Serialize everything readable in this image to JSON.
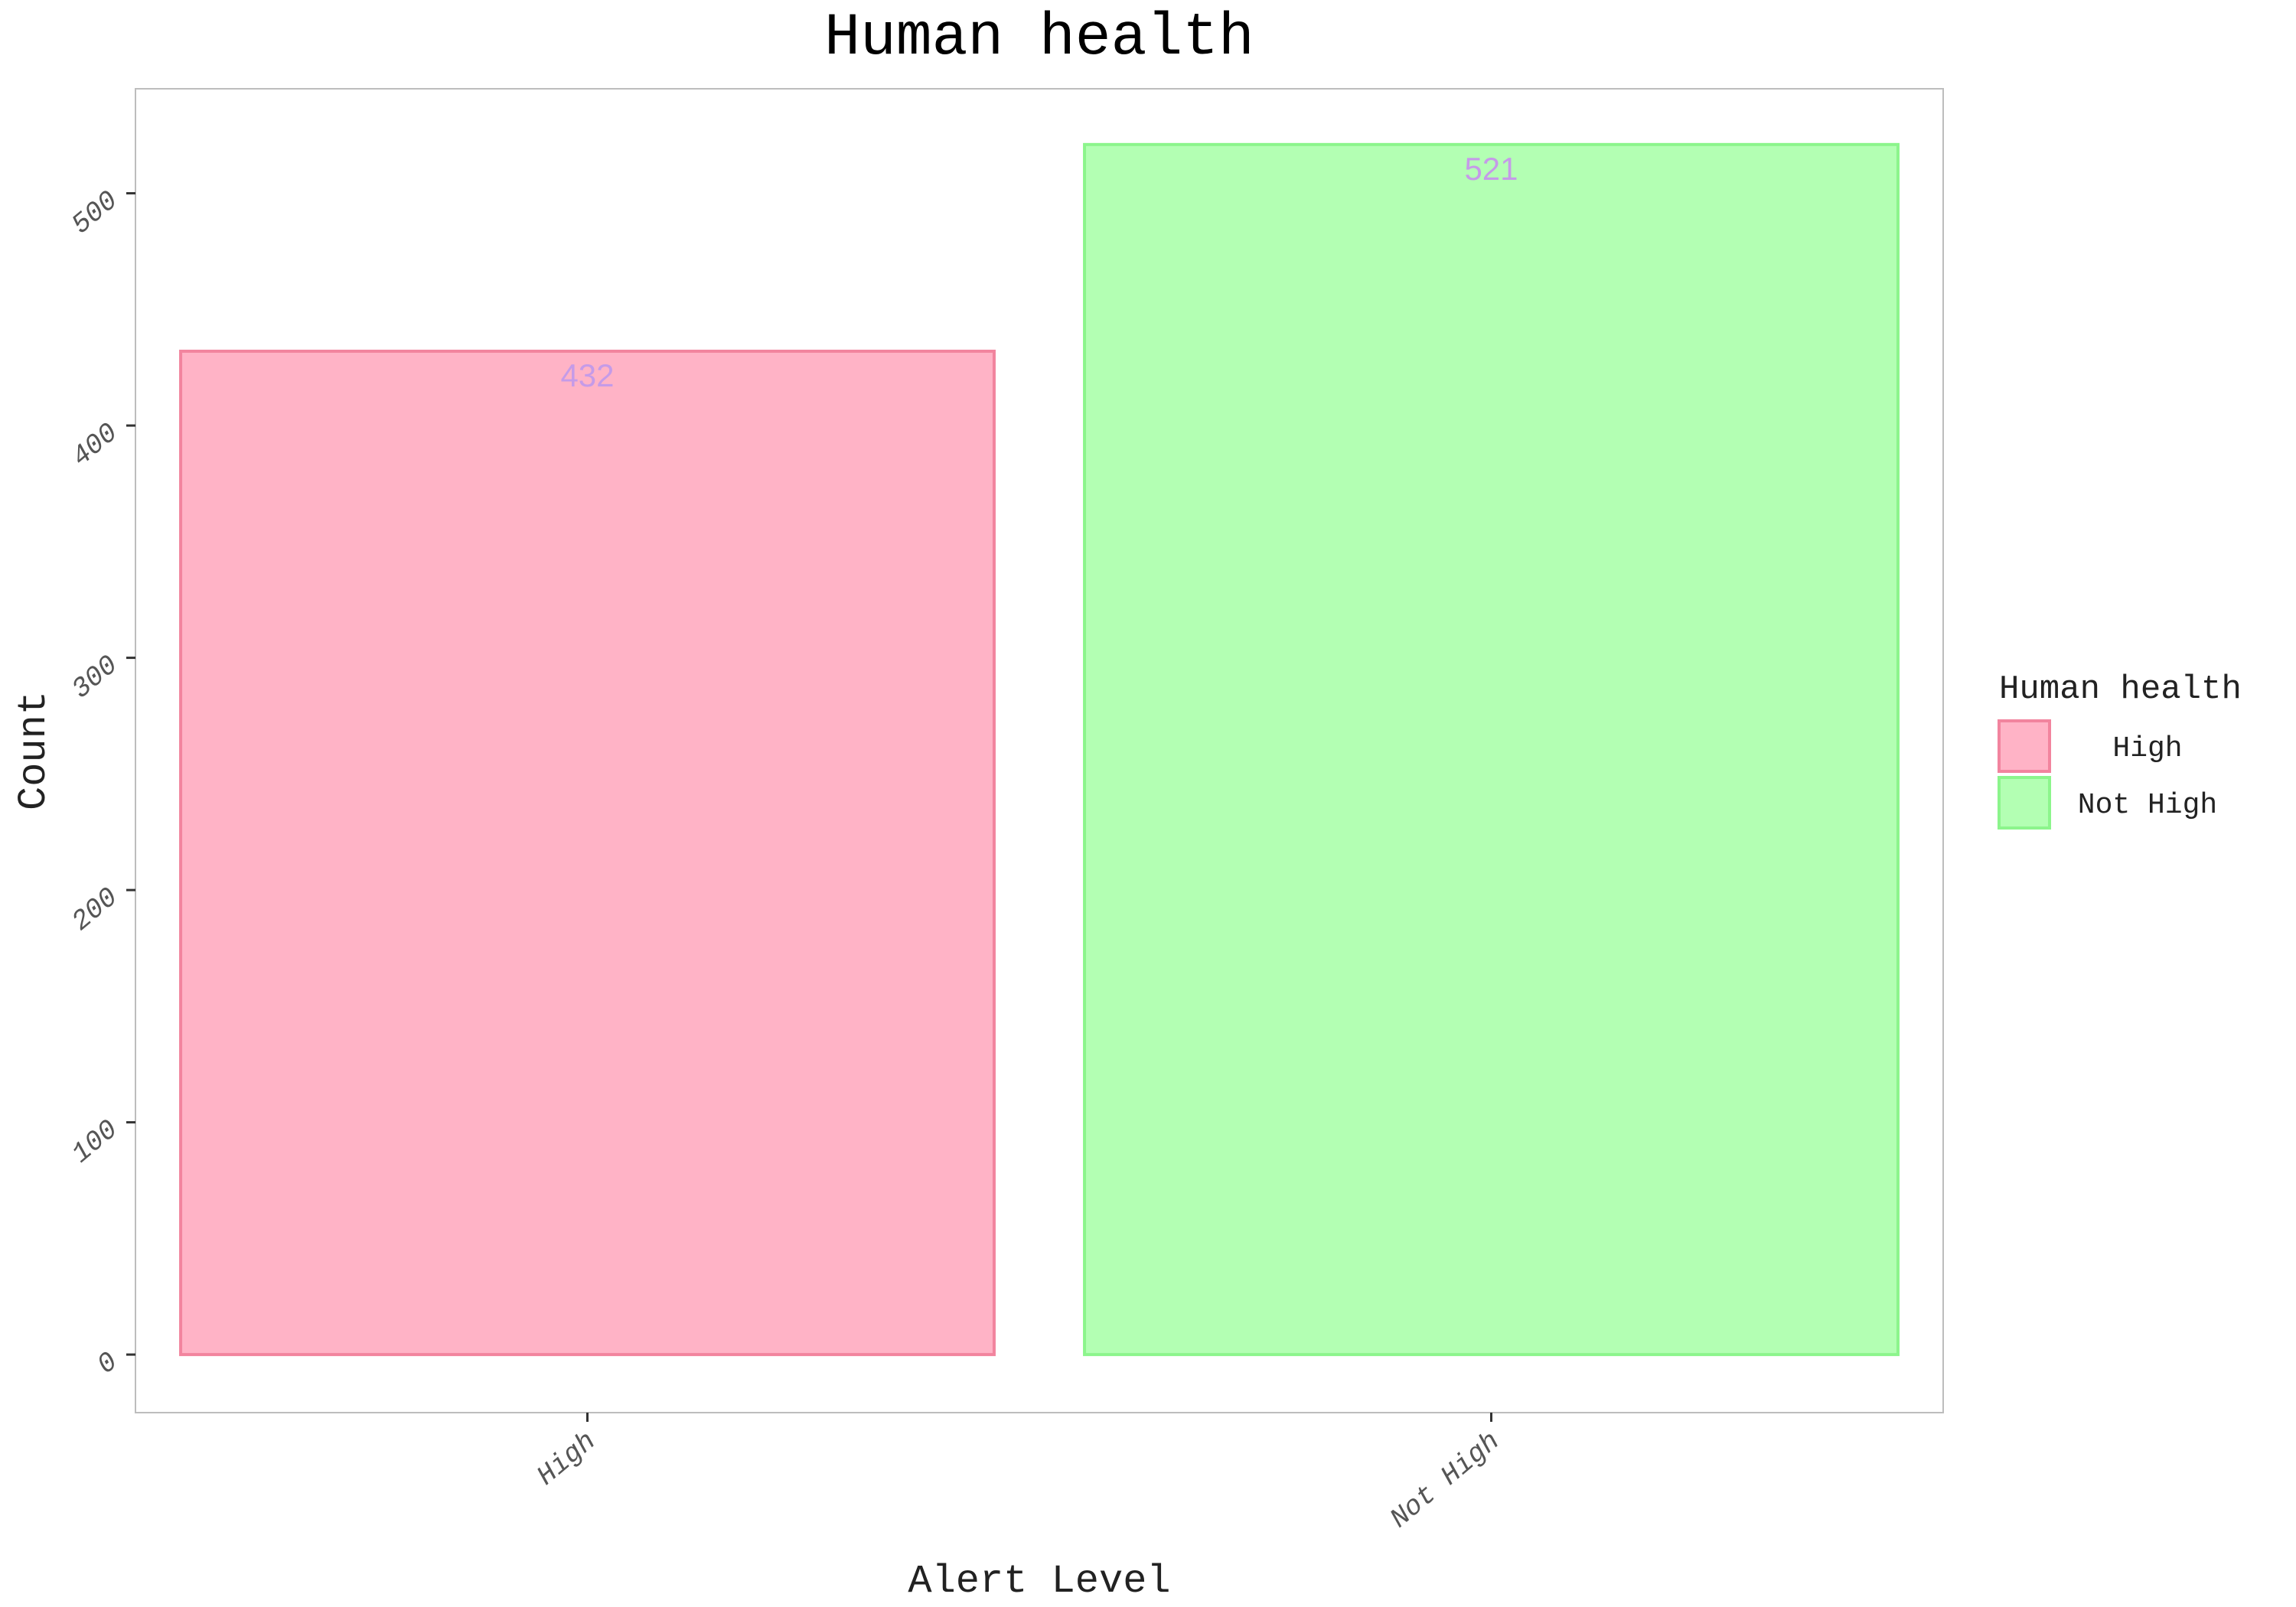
{
  "chart_data": {
    "type": "bar",
    "title": "Human health",
    "xlabel": "Alert Level",
    "ylabel": "Count",
    "categories": [
      "High",
      "Not High"
    ],
    "values": [
      432,
      521
    ],
    "data_labels": [
      "432",
      "521"
    ],
    "ylim": [
      -25,
      545
    ],
    "yticks": [
      0,
      100,
      200,
      300,
      400,
      500
    ],
    "ytick_labels": [
      "0",
      "100",
      "200",
      "300",
      "400",
      "500"
    ],
    "grid": false,
    "colors": {
      "fills": [
        "#ffb3c6",
        "#b3ffb3"
      ],
      "strokes": [
        "#f2849e",
        "#8cf58c"
      ],
      "data_label": "#c59be8"
    },
    "legend": {
      "title": "Human health",
      "placement": "right",
      "entries": [
        "High",
        "Not High"
      ]
    }
  }
}
